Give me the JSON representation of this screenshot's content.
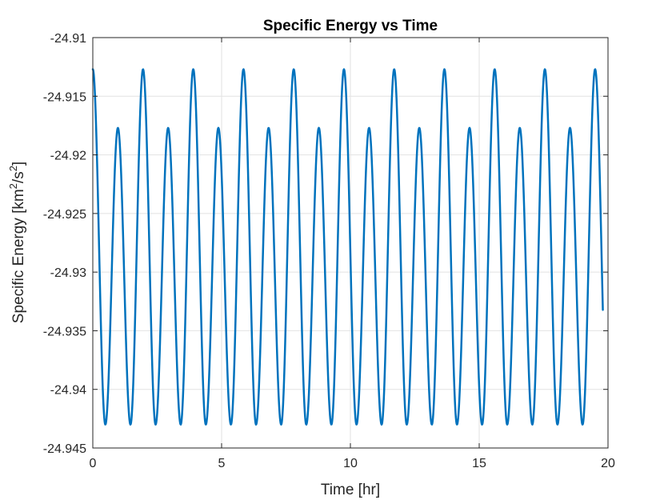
{
  "chart_data": {
    "type": "line",
    "title": "Specific Energy vs Time",
    "xlabel": "Time [hr]",
    "ylabel": {
      "prefix": "Specific Energy [km",
      "sup1": "2",
      "mid": "/s",
      "sup2": "2",
      "suffix": "]"
    },
    "xlim": [
      0,
      20
    ],
    "ylim": [
      -24.945,
      -24.91
    ],
    "xticks": [
      0,
      5,
      10,
      15,
      20
    ],
    "xtick_labels": [
      "0",
      "5",
      "10",
      "15",
      "20"
    ],
    "yticks": [
      -24.91,
      -24.915,
      -24.92,
      -24.925,
      -24.93,
      -24.935,
      -24.94,
      -24.945
    ],
    "ytick_labels": [
      "-24.91",
      "-24.915",
      "-24.92",
      "-24.925",
      "-24.93",
      "-24.935",
      "-24.94",
      "-24.945"
    ],
    "grid": true,
    "series": [
      {
        "color": "#0072BD",
        "line_width": 2.5,
        "x_end": 19.8,
        "period_hr": 0.975,
        "initial_value": -24.9127,
        "peak_values": [
          -24.9127,
          -24.9177
        ],
        "trough_value": -24.943
      }
    ]
  }
}
